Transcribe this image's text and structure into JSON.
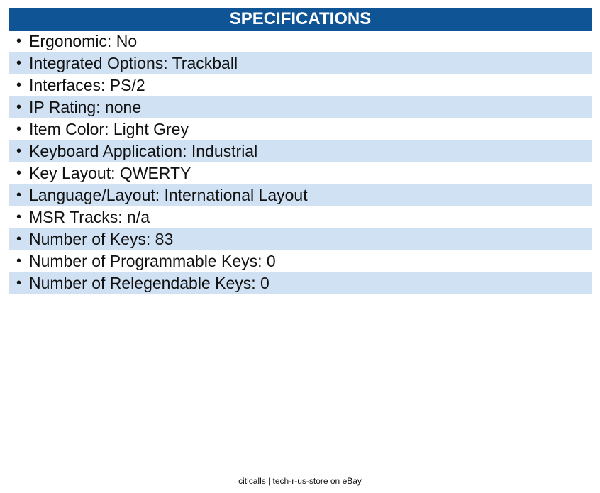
{
  "header": {
    "title": "SPECIFICATIONS"
  },
  "bullet_glyph": "•",
  "specs": [
    "Ergonomic: No",
    "Integrated Options: Trackball",
    "Interfaces: PS/2",
    "IP Rating: none",
    "Item Color: Light Grey",
    "Keyboard Application: Industrial",
    "Key Layout: QWERTY",
    "Language/Layout: International Layout",
    "MSR Tracks: n/a",
    "Number of Keys: 83",
    "Number of Programmable Keys: 0",
    "Number of Relegendable Keys: 0"
  ],
  "footer": {
    "text": "citicalls | tech-r-us-store on eBay"
  },
  "colors": {
    "header_bg": "#0f5596",
    "stripe_bg": "#cfe1f3"
  }
}
